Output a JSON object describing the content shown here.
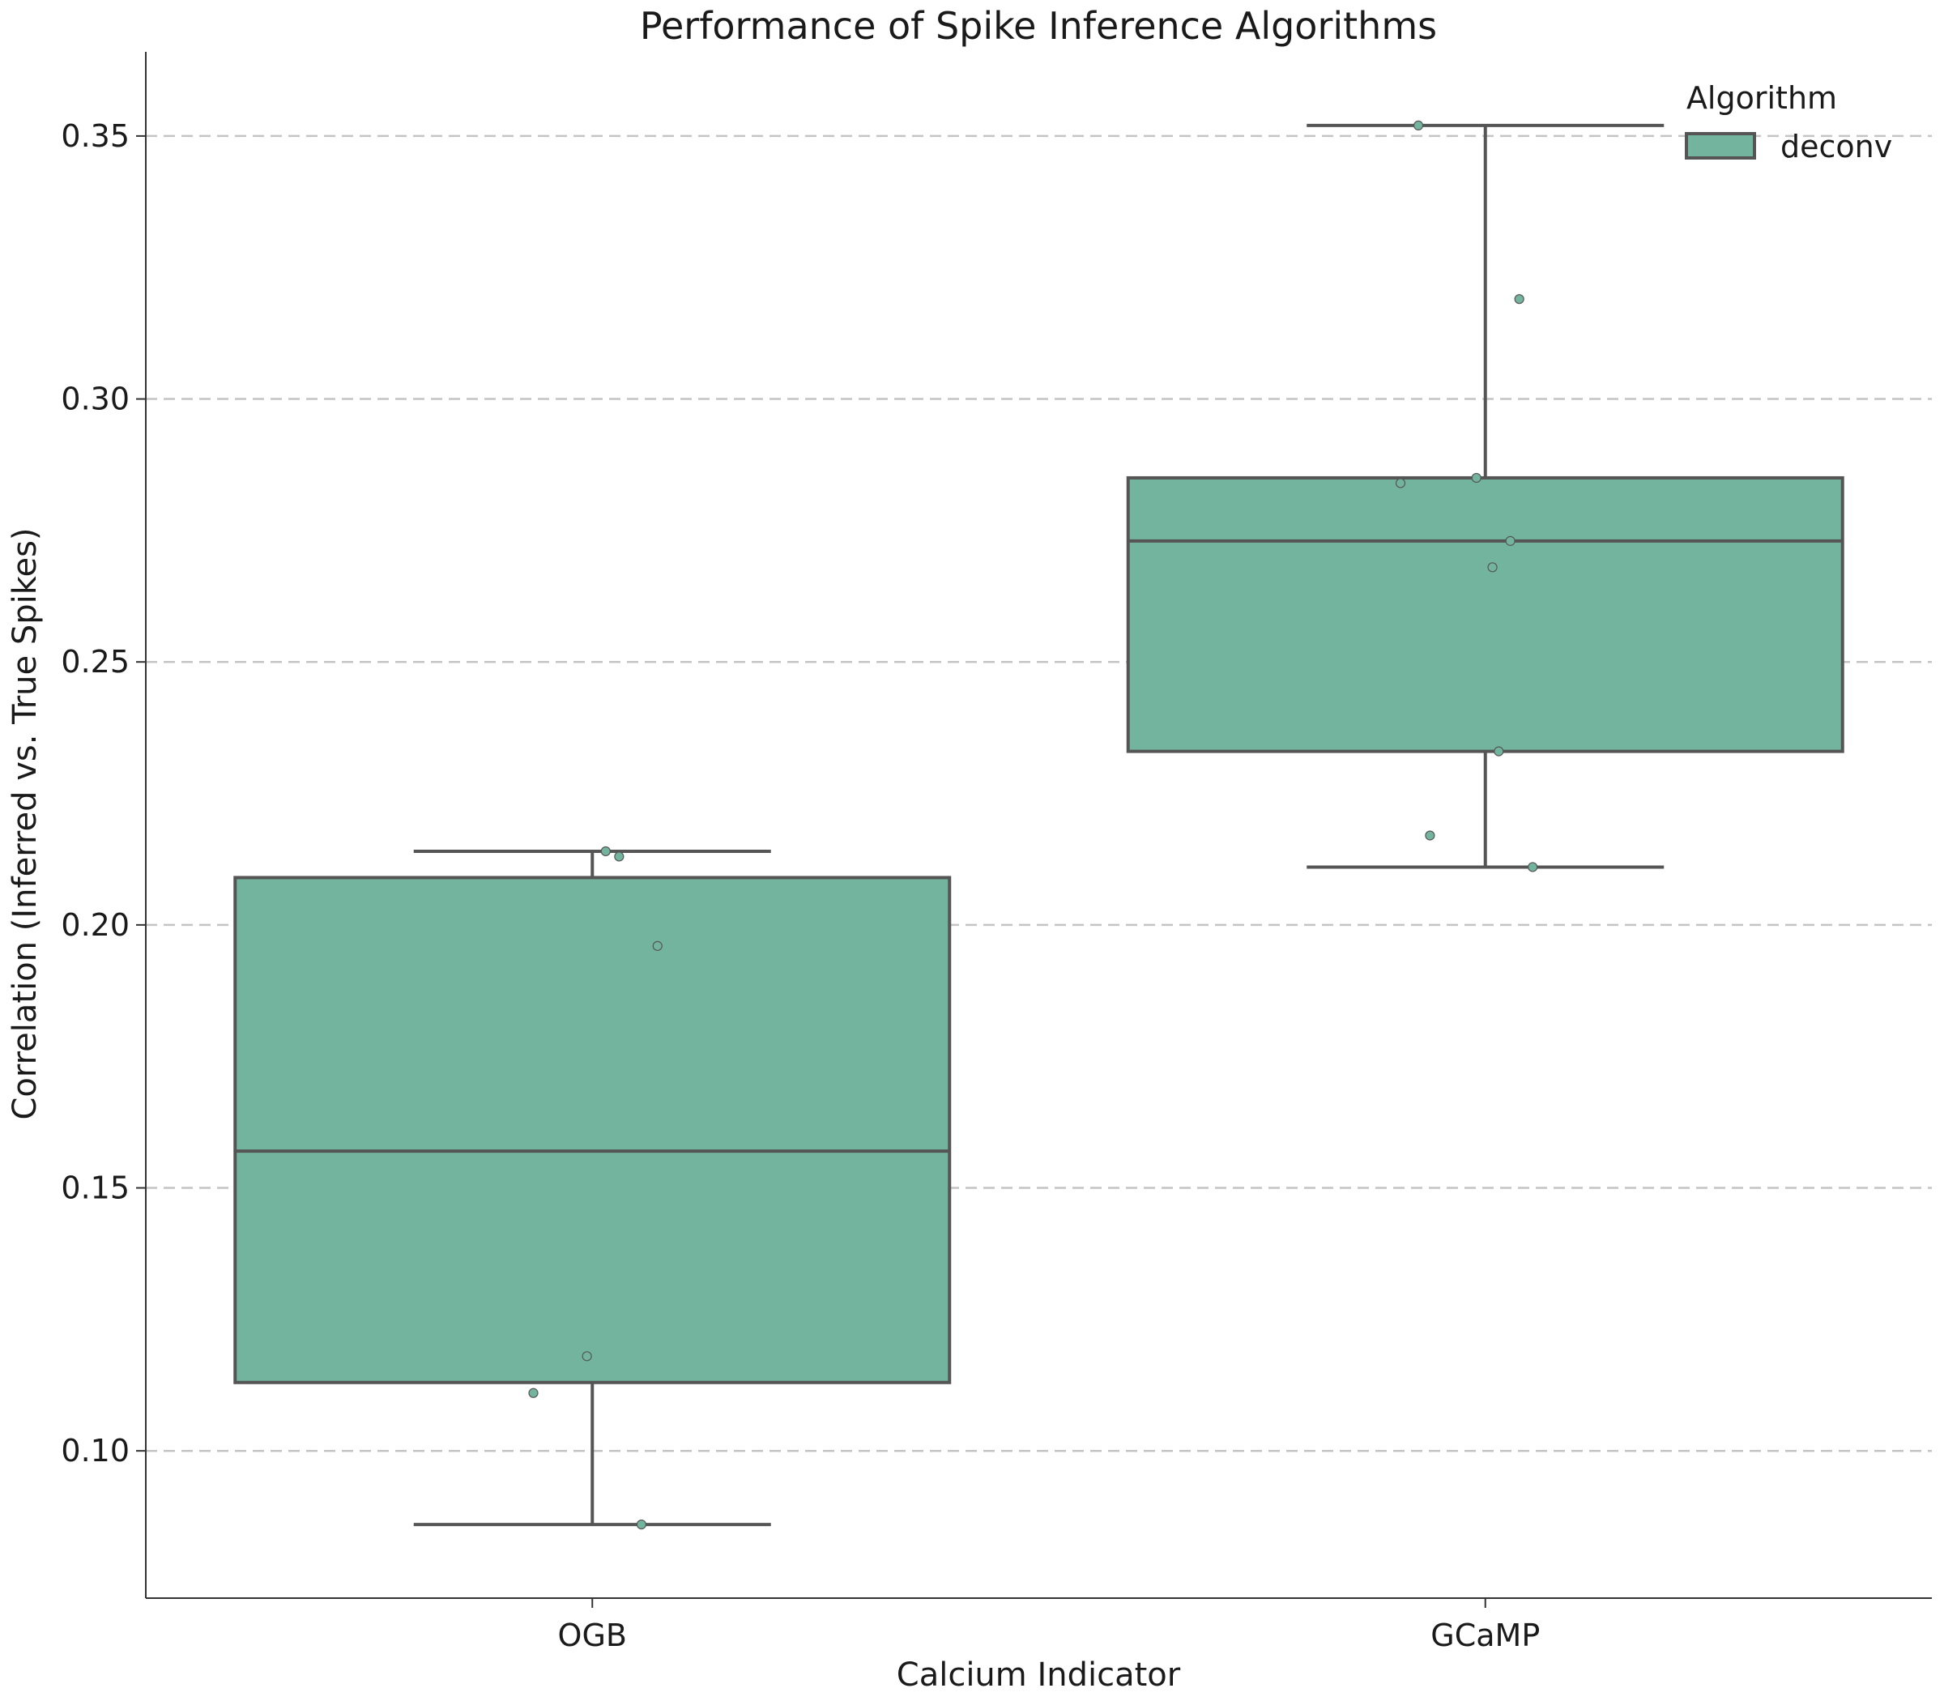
{
  "chart_data": {
    "type": "box",
    "title": "Performance of Spike Inference Algorithms",
    "xlabel": "Calcium Indicator",
    "ylabel": "Correlation (Inferred vs. True Spikes)",
    "categories": [
      "OGB",
      "GCaMP"
    ],
    "ylim": [
      0.072,
      0.366
    ],
    "yticks": [
      0.1,
      0.15,
      0.2,
      0.25,
      0.3,
      0.35
    ],
    "grid": "y, dashed",
    "legend": {
      "title": "Algorithm",
      "placement": "top-right",
      "entries": [
        {
          "label": "deconv",
          "color": "#73b49f"
        }
      ]
    },
    "series": [
      {
        "name": "deconv",
        "color": "#73b49f",
        "boxes": [
          {
            "category": "OGB",
            "whisker_low": 0.086,
            "q1": 0.113,
            "median": 0.157,
            "q3": 0.209,
            "whisker_high": 0.214
          },
          {
            "category": "GCaMP",
            "whisker_low": 0.211,
            "q1": 0.233,
            "median": 0.273,
            "q3": 0.285,
            "whisker_high": 0.352
          }
        ],
        "points": [
          {
            "category": "OGB",
            "jitter": 0.015,
            "y": 0.214
          },
          {
            "category": "OGB",
            "jitter": 0.03,
            "y": 0.213
          },
          {
            "category": "OGB",
            "jitter": 0.073,
            "y": 0.196
          },
          {
            "category": "OGB",
            "jitter": -0.006,
            "y": 0.118
          },
          {
            "category": "OGB",
            "jitter": -0.066,
            "y": 0.111
          },
          {
            "category": "OGB",
            "jitter": 0.055,
            "y": 0.086
          },
          {
            "category": "GCaMP",
            "jitter": -0.075,
            "y": 0.352
          },
          {
            "category": "GCaMP",
            "jitter": 0.038,
            "y": 0.319
          },
          {
            "category": "GCaMP",
            "jitter": -0.095,
            "y": 0.284
          },
          {
            "category": "GCaMP",
            "jitter": -0.01,
            "y": 0.285
          },
          {
            "category": "GCaMP",
            "jitter": 0.028,
            "y": 0.273
          },
          {
            "category": "GCaMP",
            "jitter": 0.008,
            "y": 0.268
          },
          {
            "category": "GCaMP",
            "jitter": 0.015,
            "y": 0.233
          },
          {
            "category": "GCaMP",
            "jitter": -0.062,
            "y": 0.217
          },
          {
            "category": "GCaMP",
            "jitter": 0.053,
            "y": 0.211
          }
        ]
      }
    ]
  },
  "colors": {
    "box_fill": "#73b49f",
    "box_line": "#555555",
    "grid": "#c4c4c4",
    "axis": "#333333"
  }
}
